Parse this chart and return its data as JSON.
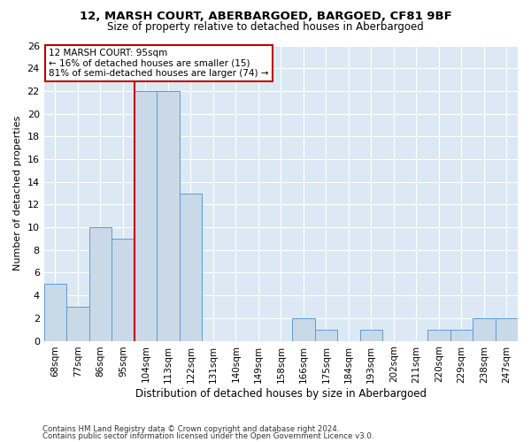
{
  "title1": "12, MARSH COURT, ABERBARGOED, BARGOED, CF81 9BF",
  "title2": "Size of property relative to detached houses in Aberbargoed",
  "xlabel": "Distribution of detached houses by size in Aberbargoed",
  "ylabel": "Number of detached properties",
  "footnote1": "Contains HM Land Registry data © Crown copyright and database right 2024.",
  "footnote2": "Contains public sector information licensed under the Open Government Licence v3.0.",
  "bin_labels": [
    "68sqm",
    "77sqm",
    "86sqm",
    "95sqm",
    "104sqm",
    "113sqm",
    "122sqm",
    "131sqm",
    "140sqm",
    "149sqm",
    "158sqm",
    "166sqm",
    "175sqm",
    "184sqm",
    "193sqm",
    "202sqm",
    "211sqm",
    "220sqm",
    "229sqm",
    "238sqm",
    "247sqm"
  ],
  "bar_values": [
    5,
    3,
    10,
    9,
    22,
    22,
    13,
    0,
    0,
    0,
    0,
    2,
    1,
    0,
    1,
    0,
    0,
    1,
    1,
    2,
    2
  ],
  "bar_color": "#c9d9e8",
  "bar_edge_color": "#5b9bd5",
  "marker_index": 3,
  "marker_line_color": "#c00000",
  "annotation_line1": "12 MARSH COURT: 95sqm",
  "annotation_line2": "← 16% of detached houses are smaller (15)",
  "annotation_line3": "81% of semi-detached houses are larger (74) →",
  "annotation_box_color": "#ffffff",
  "annotation_box_edge": "#c00000",
  "ylim": [
    0,
    26
  ],
  "yticks": [
    0,
    2,
    4,
    6,
    8,
    10,
    12,
    14,
    16,
    18,
    20,
    22,
    24,
    26
  ],
  "background_color": "#dce9f5",
  "grid_color": "#ffffff",
  "fig_bg": "#ffffff"
}
